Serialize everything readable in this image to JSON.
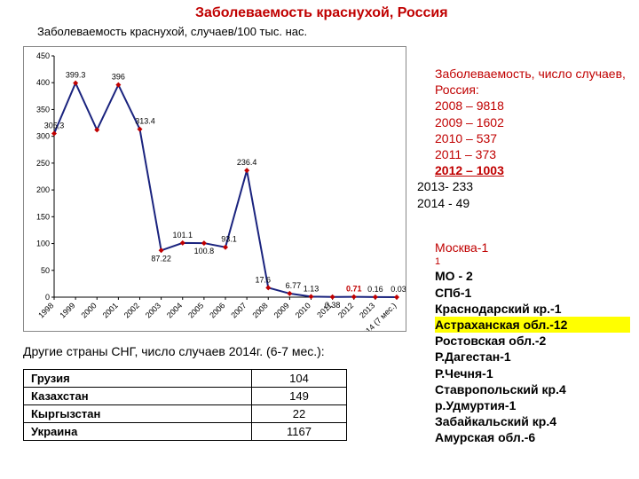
{
  "title": "Заболеваемость краснухой, Россия",
  "subtitle": "Заболеваемость краснухой, случаев/100 тыс. нас.",
  "chart": {
    "type": "line",
    "background_color": "#ffffff",
    "series_color": "#1a237e",
    "marker_color": "#c00000",
    "marker_shape": "diamond",
    "marker_size": 6,
    "line_width": 2,
    "value_fontsize": 9,
    "value_color": "#000000",
    "highlight_label_color": "#c00000",
    "highlight_label_weight": "bold",
    "xtick_fontsize": 9,
    "xtick_rotation": -45,
    "ylim": [
      0,
      450
    ],
    "ytick_step": 50,
    "yticks": [
      0,
      50,
      100,
      150,
      200,
      250,
      300,
      350,
      400,
      450
    ],
    "ytick_fontsize": 9,
    "grid_on": false,
    "categories": [
      "1998",
      "1999",
      "2000",
      "2001",
      "2002",
      "2003",
      "2004",
      "2005",
      "2006",
      "2007",
      "2008",
      "2009",
      "2010",
      "2011",
      "2012",
      "2013",
      "2014 (7 мес.)"
    ],
    "values": [
      305.3,
      399.3,
      312,
      396,
      313.4,
      87.22,
      101.1,
      100.8,
      93.1,
      236.4,
      17.6,
      6.77,
      1.13,
      0.38,
      0.71,
      0.16,
      0.03
    ],
    "value_labels": [
      "305,3",
      "399.3",
      "",
      "396",
      "313.4",
      "87.22",
      "101.1",
      "100.8",
      "93.1",
      "236.4",
      "17.6",
      "6.77",
      "1.13",
      "0.38",
      "0.71",
      "0.16",
      "0.03"
    ],
    "highlight_index": 14,
    "label_above": [
      true,
      true,
      true,
      true,
      true,
      false,
      true,
      false,
      true,
      true,
      true,
      true,
      true,
      false,
      true,
      true,
      true
    ],
    "label_nudge_x": [
      0,
      0,
      0,
      0,
      6,
      0,
      0,
      0,
      4,
      0,
      -6,
      4,
      0,
      0,
      0,
      0,
      2
    ]
  },
  "cng_caption": "Другие страны СНГ, число случаев 2014г. (6-7 мес.):",
  "cng_table": {
    "columns": [
      "Страна",
      "Случаи"
    ],
    "rows": [
      [
        "Грузия",
        "104"
      ],
      [
        "Казахстан",
        "149"
      ],
      [
        "Кыргызстан",
        "22"
      ],
      [
        "Украина",
        "1167"
      ]
    ]
  },
  "cases": {
    "header": "Заболеваемость, число случаев, Россия:",
    "red_lines": [
      "2008 – 9818",
      "2009 – 1602",
      "2010 – 537",
      "2011 – 373"
    ],
    "red_bold_line": "2012 – 1003",
    "black_lines": [
      "2013- 233",
      "2014 - 49"
    ]
  },
  "regions": {
    "moscow": "Москва-1",
    "moscow_sub": "1",
    "items": [
      {
        "text": "МО - 2"
      },
      {
        "text": "СПб-1"
      },
      {
        "text": "Краснодарский кр.-1"
      },
      {
        "text": "Астраханская обл.-12",
        "hl": true
      },
      {
        "text": "Ростовская обл.-2"
      },
      {
        "text": "Р.Дагестан-1"
      },
      {
        "text": "Р.Чечня-1"
      },
      {
        "text": "Ставропольский кр.4"
      },
      {
        "text": "р.Удмуртия-1"
      },
      {
        "text": "Забайкальский кр.4"
      },
      {
        "text": "Амурская обл.-6"
      }
    ]
  },
  "colors": {
    "title_color": "#c00000",
    "text_color": "#000000"
  }
}
